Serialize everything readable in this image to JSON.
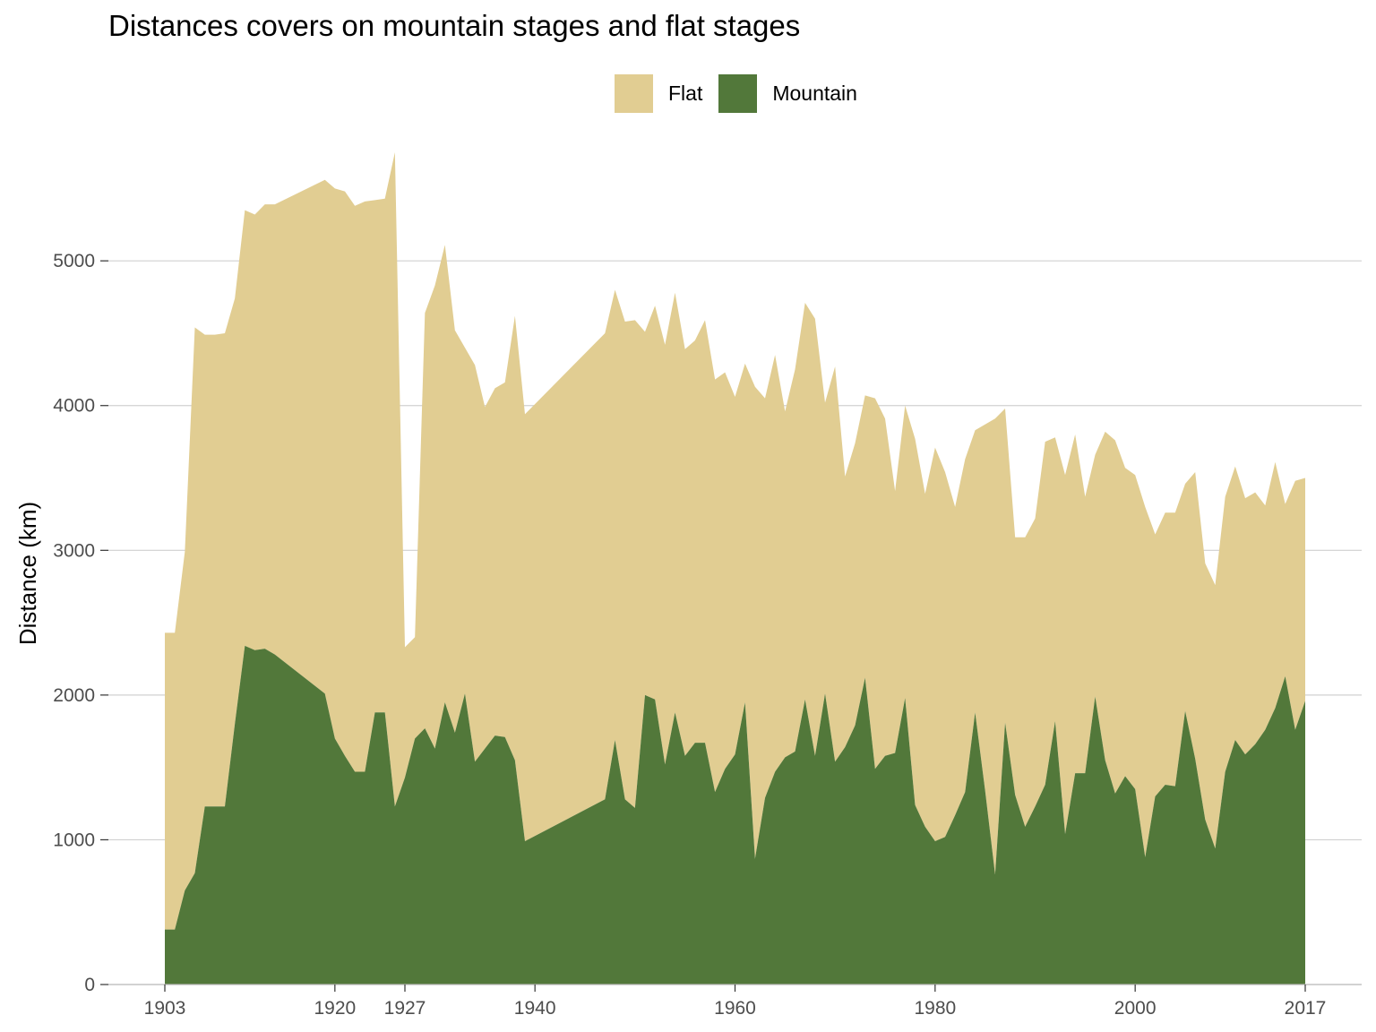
{
  "chart_data": {
    "type": "area",
    "title": "Distances covers on mountain stages and flat stages",
    "xlabel": "",
    "ylabel": "Distance (km)",
    "xlim": [
      1903,
      2017
    ],
    "ylim": [
      0,
      5750
    ],
    "x_ticks": [
      1903,
      1920,
      1927,
      1940,
      1960,
      1980,
      2000,
      2017
    ],
    "y_ticks": [
      0,
      1000,
      2000,
      3000,
      4000,
      5000
    ],
    "grid": "horizontal",
    "legend_position": "top",
    "stacked": true,
    "series": [
      {
        "name": "Mountain",
        "color": "#52783a",
        "points": [
          [
            1903,
            380
          ],
          [
            1904,
            380
          ],
          [
            1905,
            650
          ],
          [
            1906,
            770
          ],
          [
            1907,
            1230
          ],
          [
            1908,
            1230
          ],
          [
            1909,
            1230
          ],
          [
            1910,
            1800
          ],
          [
            1911,
            2340
          ],
          [
            1912,
            2310
          ],
          [
            1913,
            2320
          ],
          [
            1914,
            2280
          ],
          [
            1919,
            2010
          ],
          [
            1920,
            1700
          ],
          [
            1921,
            1580
          ],
          [
            1922,
            1470
          ],
          [
            1923,
            1470
          ],
          [
            1924,
            1880
          ],
          [
            1925,
            1880
          ],
          [
            1926,
            1230
          ],
          [
            1927,
            1430
          ],
          [
            1928,
            1700
          ],
          [
            1929,
            1770
          ],
          [
            1930,
            1630
          ],
          [
            1931,
            1950
          ],
          [
            1932,
            1740
          ],
          [
            1933,
            2010
          ],
          [
            1934,
            1540
          ],
          [
            1935,
            1630
          ],
          [
            1936,
            1720
          ],
          [
            1937,
            1710
          ],
          [
            1938,
            1550
          ],
          [
            1939,
            990
          ],
          [
            1947,
            1280
          ],
          [
            1948,
            1690
          ],
          [
            1949,
            1280
          ],
          [
            1950,
            1220
          ],
          [
            1951,
            2000
          ],
          [
            1952,
            1970
          ],
          [
            1953,
            1520
          ],
          [
            1954,
            1880
          ],
          [
            1955,
            1580
          ],
          [
            1956,
            1670
          ],
          [
            1957,
            1670
          ],
          [
            1958,
            1330
          ],
          [
            1959,
            1490
          ],
          [
            1960,
            1590
          ],
          [
            1961,
            1950
          ],
          [
            1962,
            870
          ],
          [
            1963,
            1290
          ],
          [
            1964,
            1470
          ],
          [
            1965,
            1570
          ],
          [
            1966,
            1610
          ],
          [
            1967,
            1970
          ],
          [
            1968,
            1580
          ],
          [
            1969,
            2010
          ],
          [
            1970,
            1540
          ],
          [
            1971,
            1640
          ],
          [
            1972,
            1790
          ],
          [
            1973,
            2120
          ],
          [
            1974,
            1490
          ],
          [
            1975,
            1580
          ],
          [
            1976,
            1600
          ],
          [
            1977,
            1980
          ],
          [
            1978,
            1240
          ],
          [
            1979,
            1090
          ],
          [
            1980,
            990
          ],
          [
            1981,
            1020
          ],
          [
            1982,
            1170
          ],
          [
            1983,
            1330
          ],
          [
            1984,
            1880
          ],
          [
            1985,
            1340
          ],
          [
            1986,
            760
          ],
          [
            1987,
            1810
          ],
          [
            1988,
            1310
          ],
          [
            1989,
            1090
          ],
          [
            1990,
            1230
          ],
          [
            1991,
            1380
          ],
          [
            1992,
            1820
          ],
          [
            1993,
            1040
          ],
          [
            1994,
            1460
          ],
          [
            1995,
            1460
          ],
          [
            1996,
            1990
          ],
          [
            1997,
            1550
          ],
          [
            1998,
            1320
          ],
          [
            1999,
            1440
          ],
          [
            2000,
            1350
          ],
          [
            2001,
            880
          ],
          [
            2002,
            1300
          ],
          [
            2003,
            1380
          ],
          [
            2004,
            1370
          ],
          [
            2005,
            1890
          ],
          [
            2006,
            1560
          ],
          [
            2007,
            1140
          ],
          [
            2008,
            940
          ],
          [
            2009,
            1470
          ],
          [
            2010,
            1690
          ],
          [
            2011,
            1590
          ],
          [
            2012,
            1660
          ],
          [
            2013,
            1760
          ],
          [
            2014,
            1910
          ],
          [
            2015,
            2130
          ],
          [
            2016,
            1760
          ],
          [
            2017,
            1960
          ]
        ]
      },
      {
        "name": "Flat",
        "color": "#e1cd92",
        "points": [
          [
            1903,
            2050
          ],
          [
            1904,
            2050
          ],
          [
            1905,
            2340
          ],
          [
            1906,
            3770
          ],
          [
            1907,
            3260
          ],
          [
            1908,
            3260
          ],
          [
            1909,
            3270
          ],
          [
            1910,
            2940
          ],
          [
            1911,
            3010
          ],
          [
            1912,
            3010
          ],
          [
            1913,
            3070
          ],
          [
            1914,
            3110
          ],
          [
            1919,
            3550
          ],
          [
            1920,
            3800
          ],
          [
            1921,
            3900
          ],
          [
            1922,
            3910
          ],
          [
            1923,
            3940
          ],
          [
            1924,
            3540
          ],
          [
            1925,
            3550
          ],
          [
            1926,
            4520
          ],
          [
            1927,
            900
          ],
          [
            1928,
            700
          ],
          [
            1929,
            2870
          ],
          [
            1930,
            3200
          ],
          [
            1931,
            3160
          ],
          [
            1932,
            2780
          ],
          [
            1933,
            2390
          ],
          [
            1934,
            2740
          ],
          [
            1935,
            2360
          ],
          [
            1936,
            2400
          ],
          [
            1937,
            2450
          ],
          [
            1938,
            3070
          ],
          [
            1939,
            2950
          ],
          [
            1947,
            3220
          ],
          [
            1948,
            3110
          ],
          [
            1949,
            3300
          ],
          [
            1950,
            3370
          ],
          [
            1951,
            2510
          ],
          [
            1952,
            2720
          ],
          [
            1953,
            2900
          ],
          [
            1954,
            2900
          ],
          [
            1955,
            2810
          ],
          [
            1956,
            2780
          ],
          [
            1957,
            2920
          ],
          [
            1958,
            2850
          ],
          [
            1959,
            2740
          ],
          [
            1960,
            2470
          ],
          [
            1961,
            2340
          ],
          [
            1962,
            3260
          ],
          [
            1963,
            2760
          ],
          [
            1964,
            2880
          ],
          [
            1965,
            2390
          ],
          [
            1966,
            2640
          ],
          [
            1967,
            2740
          ],
          [
            1968,
            3020
          ],
          [
            1969,
            2010
          ],
          [
            1970,
            2730
          ],
          [
            1971,
            1870
          ],
          [
            1972,
            1950
          ],
          [
            1973,
            1950
          ],
          [
            1974,
            2560
          ],
          [
            1975,
            2330
          ],
          [
            1976,
            1810
          ],
          [
            1977,
            2020
          ],
          [
            1978,
            2530
          ],
          [
            1979,
            2300
          ],
          [
            1980,
            2720
          ],
          [
            1981,
            2520
          ],
          [
            1982,
            2130
          ],
          [
            1983,
            2300
          ],
          [
            1984,
            1950
          ],
          [
            1985,
            2530
          ],
          [
            1986,
            3150
          ],
          [
            1987,
            2170
          ],
          [
            1988,
            1780
          ],
          [
            1989,
            2000
          ],
          [
            1990,
            1990
          ],
          [
            1991,
            2370
          ],
          [
            1992,
            1960
          ],
          [
            1993,
            2480
          ],
          [
            1994,
            2340
          ],
          [
            1995,
            1910
          ],
          [
            1996,
            1670
          ],
          [
            1997,
            2270
          ],
          [
            1998,
            2440
          ],
          [
            1999,
            2130
          ],
          [
            2000,
            2170
          ],
          [
            2001,
            2420
          ],
          [
            2002,
            1810
          ],
          [
            2003,
            1880
          ],
          [
            2004,
            1890
          ],
          [
            2005,
            1570
          ],
          [
            2006,
            1980
          ],
          [
            2007,
            1770
          ],
          [
            2008,
            1820
          ],
          [
            2009,
            1900
          ],
          [
            2010,
            1890
          ],
          [
            2011,
            1770
          ],
          [
            2012,
            1740
          ],
          [
            2013,
            1550
          ],
          [
            2014,
            1700
          ],
          [
            2015,
            1190
          ],
          [
            2016,
            1720
          ],
          [
            2017,
            1540
          ]
        ]
      }
    ]
  }
}
